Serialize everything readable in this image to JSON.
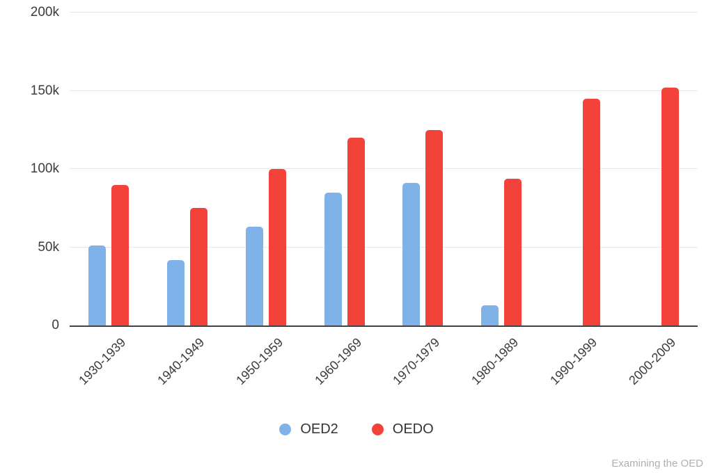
{
  "chart_data": {
    "type": "bar",
    "title": "",
    "xlabel": "",
    "ylabel": "",
    "categories": [
      "1930-1939",
      "1940-1949",
      "1950-1959",
      "1960-1969",
      "1970-1979",
      "1980-1989",
      "1990-1999",
      "2000-2009"
    ],
    "series": [
      {
        "name": "OED2",
        "color": "#7FB2E8",
        "values": [
          51000,
          42000,
          63000,
          85000,
          91000,
          13000,
          null,
          null
        ]
      },
      {
        "name": "OEDO",
        "color": "#F2423A",
        "values": [
          90000,
          75000,
          100000,
          120000,
          125000,
          94000,
          145000,
          152000
        ]
      }
    ],
    "ylim": [
      0,
      200000
    ],
    "yticks": [
      {
        "value": 0,
        "label": "0"
      },
      {
        "value": 50000,
        "label": "50k"
      },
      {
        "value": 100000,
        "label": "100k"
      },
      {
        "value": 150000,
        "label": "150k"
      },
      {
        "value": 200000,
        "label": "200k"
      }
    ],
    "grid": "horizontal",
    "legend_position": "bottom"
  },
  "footer": {
    "credit": "Examining the OED"
  }
}
